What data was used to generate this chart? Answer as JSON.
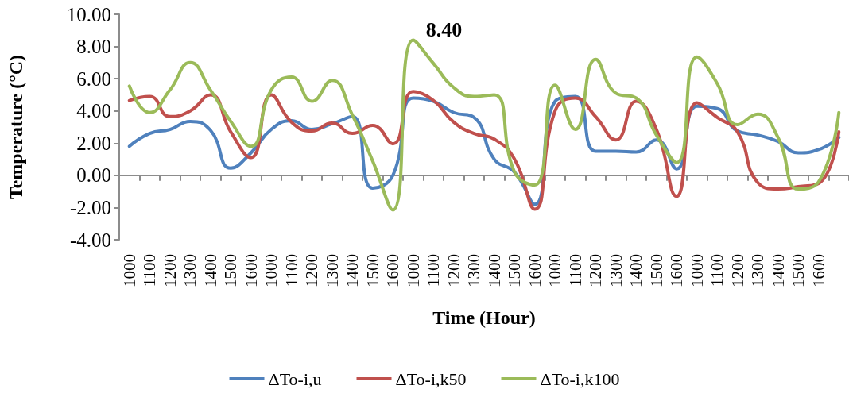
{
  "chart_data": {
    "type": "line",
    "xlabel": "Time (Hour)",
    "ylabel": "Temperature (°C)",
    "categories": [
      "1000",
      "1100",
      "1200",
      "1300",
      "1400",
      "1500",
      "1600",
      "1000",
      "1100",
      "1200",
      "1300",
      "1400",
      "1500",
      "1600",
      "1000",
      "1100",
      "1200",
      "1300",
      "1400",
      "1500",
      "1600",
      "1000",
      "1100",
      "1200",
      "1300",
      "1400",
      "1500",
      "1600",
      "1000",
      "1100",
      "1200",
      "1300",
      "1400",
      "1500",
      "1600",
      null
    ],
    "series": [
      {
        "name": "ΔTo-i,u",
        "color": "#4f81bd",
        "values": [
          1.8,
          2.6,
          2.85,
          3.35,
          2.8,
          0.45,
          1.4,
          2.85,
          3.4,
          2.85,
          3.2,
          3.65,
          -0.8,
          0.0,
          4.8,
          4.6,
          3.9,
          3.6,
          1.0,
          0.2,
          -1.8,
          4.6,
          4.9,
          1.5,
          1.5,
          1.45,
          2.2,
          0.4,
          4.3,
          4.15,
          2.75,
          2.5,
          2.1,
          1.4,
          1.6,
          2.35
        ]
      },
      {
        "name": "ΔTo-i,k50",
        "color": "#c0504d",
        "values": [
          4.65,
          4.9,
          3.65,
          4.0,
          5.0,
          2.7,
          1.1,
          5.0,
          3.3,
          2.75,
          3.25,
          2.6,
          3.1,
          1.95,
          5.2,
          4.65,
          3.3,
          2.6,
          2.25,
          1.0,
          -2.1,
          4.0,
          4.8,
          3.65,
          2.2,
          4.6,
          2.85,
          -1.3,
          4.5,
          3.6,
          2.7,
          -0.45,
          -0.85,
          -0.7,
          -0.5,
          2.7
        ]
      },
      {
        "name": "ΔTo-i,k100",
        "color": "#9bbb59",
        "values": [
          5.55,
          3.9,
          5.3,
          7.0,
          5.3,
          3.35,
          1.8,
          5.3,
          6.1,
          4.6,
          5.9,
          3.75,
          0.9,
          -2.15,
          8.4,
          6.95,
          5.45,
          4.9,
          5.0,
          0.2,
          -0.6,
          5.6,
          2.85,
          7.2,
          5.1,
          4.8,
          2.5,
          0.8,
          7.35,
          5.7,
          3.15,
          3.8,
          2.35,
          -0.85,
          -0.4,
          3.9
        ],
        "value_labels": [
          null,
          null,
          null,
          null,
          null,
          null,
          null,
          null,
          null,
          null,
          null,
          null,
          null,
          null,
          "8.40",
          null,
          null,
          null,
          null,
          null,
          null,
          null,
          null,
          null,
          null,
          null,
          null,
          null,
          null,
          null,
          null,
          null,
          null,
          null,
          null,
          null
        ]
      }
    ],
    "ylim": [
      -4,
      10
    ],
    "yticks": [
      {
        "value": -4,
        "label": "-4.00"
      },
      {
        "value": -2,
        "label": "-2.00"
      },
      {
        "value": 0,
        "label": "0.00"
      },
      {
        "value": 2,
        "label": "2.00"
      },
      {
        "value": 4,
        "label": "4.00"
      },
      {
        "value": 6,
        "label": "6.00"
      },
      {
        "value": 8,
        "label": "8.00"
      },
      {
        "value": 10,
        "label": "10.00"
      }
    ],
    "legend": "bottom",
    "marker": "none",
    "line_style": "solid"
  }
}
